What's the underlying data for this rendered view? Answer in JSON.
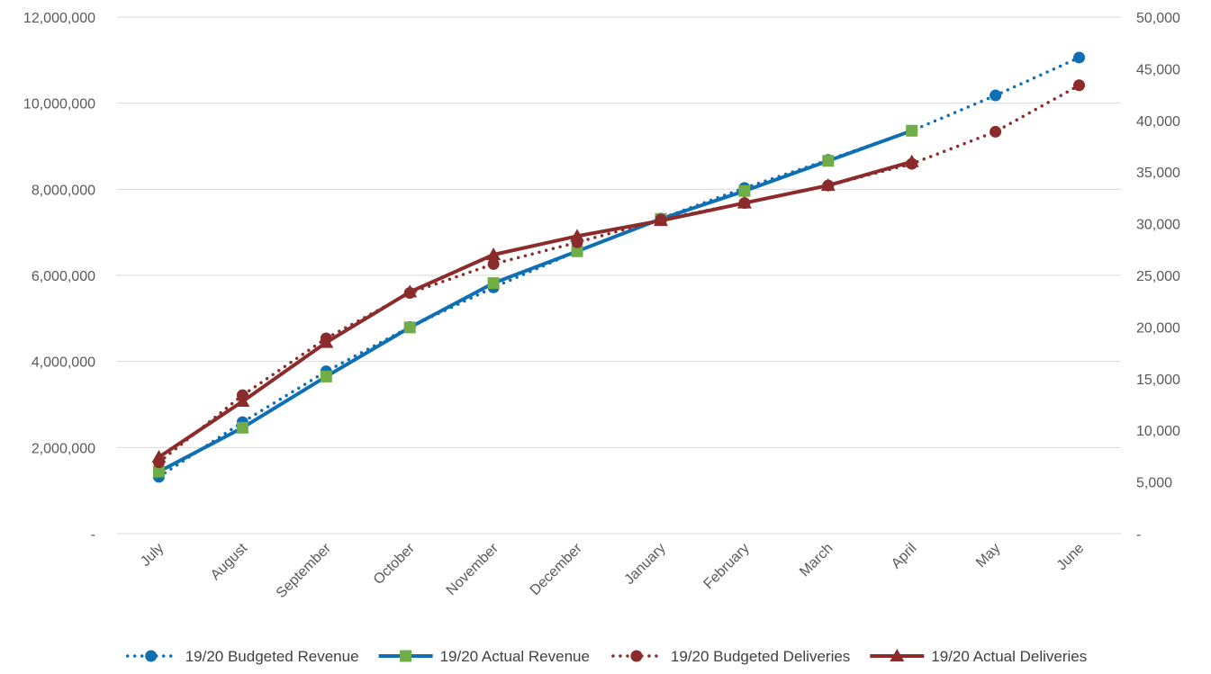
{
  "chart_data": {
    "type": "line",
    "categories": [
      "July",
      "August",
      "September",
      "October",
      "November",
      "December",
      "January",
      "February",
      "March",
      "April",
      "May",
      "June"
    ],
    "y_left": {
      "range": [
        0,
        12000000
      ],
      "ticks": [
        0,
        2000000,
        4000000,
        6000000,
        8000000,
        10000000,
        12000000
      ],
      "tick_labels": [
        "-",
        "2,000,000",
        "4,000,000",
        "6,000,000",
        "8,000,000",
        "10,000,000",
        "12,000,000"
      ]
    },
    "y_right": {
      "range": [
        0,
        50000
      ],
      "ticks": [
        0,
        5000,
        10000,
        15000,
        20000,
        25000,
        30000,
        35000,
        40000,
        45000,
        50000
      ],
      "tick_labels": [
        "-",
        "5,000",
        "10,000",
        "15,000",
        "20,000",
        "25,000",
        "30,000",
        "35,000",
        "40,000",
        "45,000",
        "50,000"
      ]
    },
    "grid": true,
    "legend_position": "bottom",
    "series": [
      {
        "name": "19/20 Budgeted Revenue",
        "axis": "left",
        "style": "dotted",
        "marker": "circle",
        "color": "#0F6FB5",
        "values": [
          1320000,
          2590000,
          3770000,
          4800000,
          5720000,
          6560000,
          7320000,
          8030000,
          8680000,
          9360000,
          10180000,
          11060000
        ]
      },
      {
        "name": "19/20 Actual Revenue",
        "axis": "left",
        "style": "solid",
        "marker": "square",
        "color": "#0F6FB5",
        "marker_color": "#70AD47",
        "values": [
          1440000,
          2460000,
          3650000,
          4790000,
          5820000,
          6560000,
          7310000,
          7960000,
          8660000,
          9360000,
          null,
          null
        ]
      },
      {
        "name": "19/20 Budgeted Deliveries",
        "axis": "right",
        "style": "dotted",
        "marker": "circle",
        "color": "#8B2B2B",
        "values": [
          6900,
          13400,
          18900,
          23300,
          26100,
          28200,
          30400,
          32000,
          33700,
          35800,
          38900,
          43400
        ]
      },
      {
        "name": "19/20 Actual Deliveries",
        "axis": "right",
        "style": "solid",
        "marker": "triangle",
        "color": "#8B2B2B",
        "values": [
          7400,
          12800,
          18500,
          23400,
          27000,
          28800,
          30300,
          32000,
          33700,
          36000,
          null,
          null
        ]
      }
    ]
  }
}
